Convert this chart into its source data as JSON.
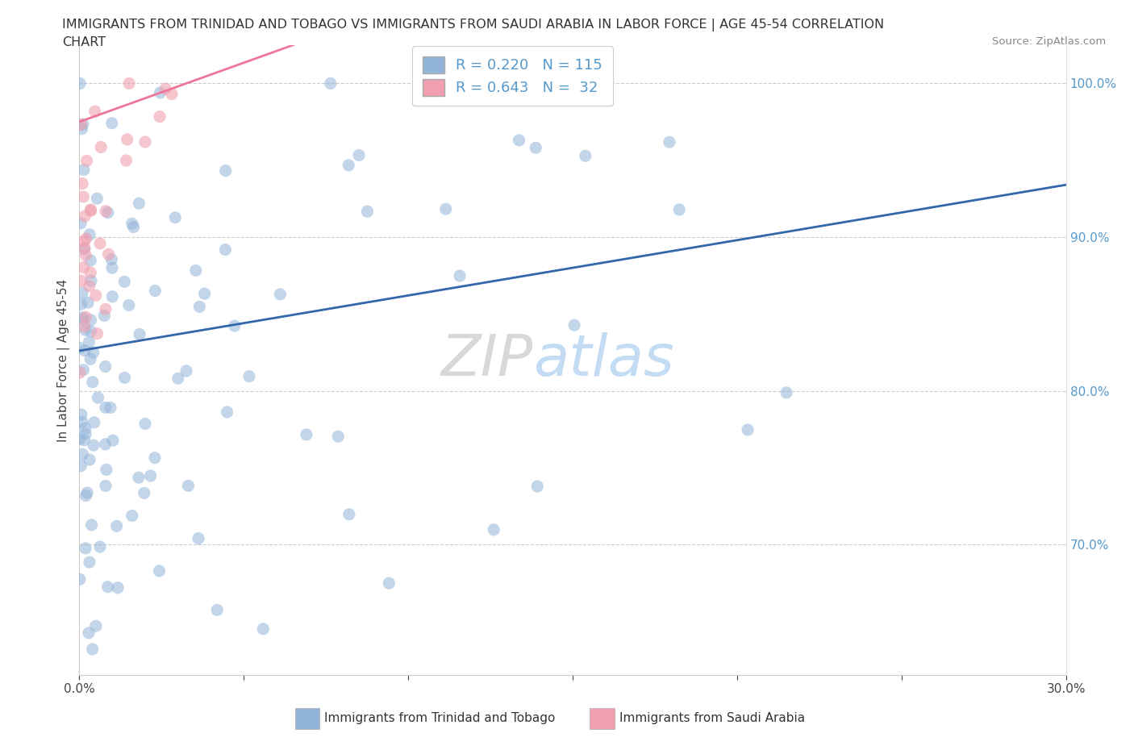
{
  "title_line1": "IMMIGRANTS FROM TRINIDAD AND TOBAGO VS IMMIGRANTS FROM SAUDI ARABIA IN LABOR FORCE | AGE 45-54 CORRELATION",
  "title_line2": "CHART",
  "source": "Source: ZipAtlas.com",
  "ylabel": "In Labor Force | Age 45-54",
  "xlim": [
    0.0,
    0.3
  ],
  "ylim": [
    0.615,
    1.025
  ],
  "R_blue": 0.22,
  "N_blue": 115,
  "R_pink": 0.643,
  "N_pink": 32,
  "legend_label_blue": "Immigrants from Trinidad and Tobago",
  "legend_label_pink": "Immigrants from Saudi Arabia",
  "color_blue": "#92B4D8",
  "color_pink": "#F0A0B0",
  "color_blue_line": "#3366AA",
  "color_pink_line": "#EE7799",
  "color_raxis": "#5599CC",
  "watermark_zip": "#CCCCCC",
  "watermark_atlas": "#AACCEE",
  "blue_line_x0": 0.0,
  "blue_line_y0": 0.826,
  "blue_line_x1": 0.3,
  "blue_line_y1": 0.934,
  "pink_line_x0": 0.0,
  "pink_line_y0": 0.975,
  "pink_line_x1": 0.065,
  "pink_line_y1": 1.025
}
